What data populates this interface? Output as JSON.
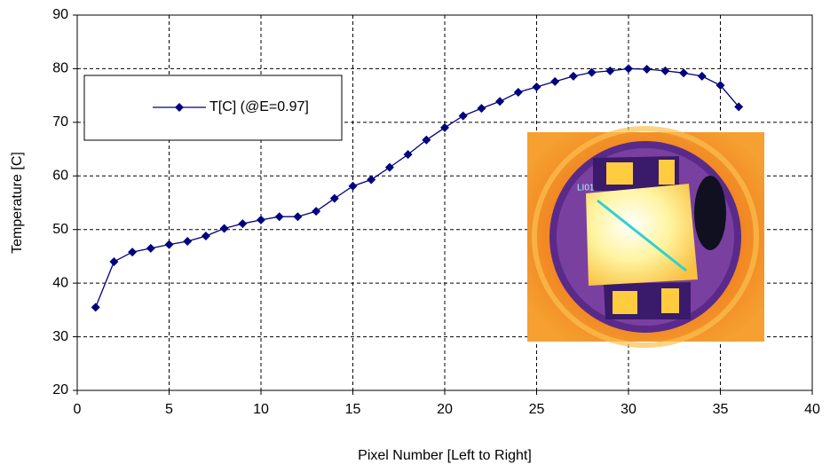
{
  "chart_data": {
    "type": "line",
    "x_label": "Pixel Number [Left to Right]",
    "y_label": "Temperature [C]",
    "x": [
      1,
      2,
      3,
      4,
      5,
      6,
      7,
      8,
      9,
      10,
      11,
      12,
      13,
      14,
      15,
      16,
      17,
      18,
      19,
      20,
      21,
      22,
      23,
      24,
      25,
      26,
      27,
      28,
      29,
      30,
      31,
      32,
      33,
      34,
      35,
      36
    ],
    "series": [
      {
        "name": "T[C] (@E=0.97]",
        "color": "#000080",
        "values": [
          35.5,
          44,
          45.8,
          46.5,
          47.2,
          47.8,
          48.8,
          50.2,
          51.1,
          51.8,
          52.4,
          52.4,
          53.4,
          55.8,
          58.1,
          59.3,
          61.6,
          64,
          66.7,
          69,
          71.2,
          72.6,
          73.9,
          75.6,
          76.6,
          77.6,
          78.6,
          79.3,
          79.6,
          80,
          79.9,
          79.6,
          79.2,
          78.6,
          76.9,
          72.9
        ]
      }
    ],
    "xlim": [
      0,
      40
    ],
    "xticks": [
      0,
      5,
      10,
      15,
      20,
      25,
      30,
      35,
      40
    ],
    "ylim": [
      20,
      90
    ],
    "yticks": [
      20,
      30,
      40,
      50,
      60,
      70,
      80,
      90
    ],
    "grid": true,
    "legend": "upper left",
    "inset_label": "LI01"
  }
}
